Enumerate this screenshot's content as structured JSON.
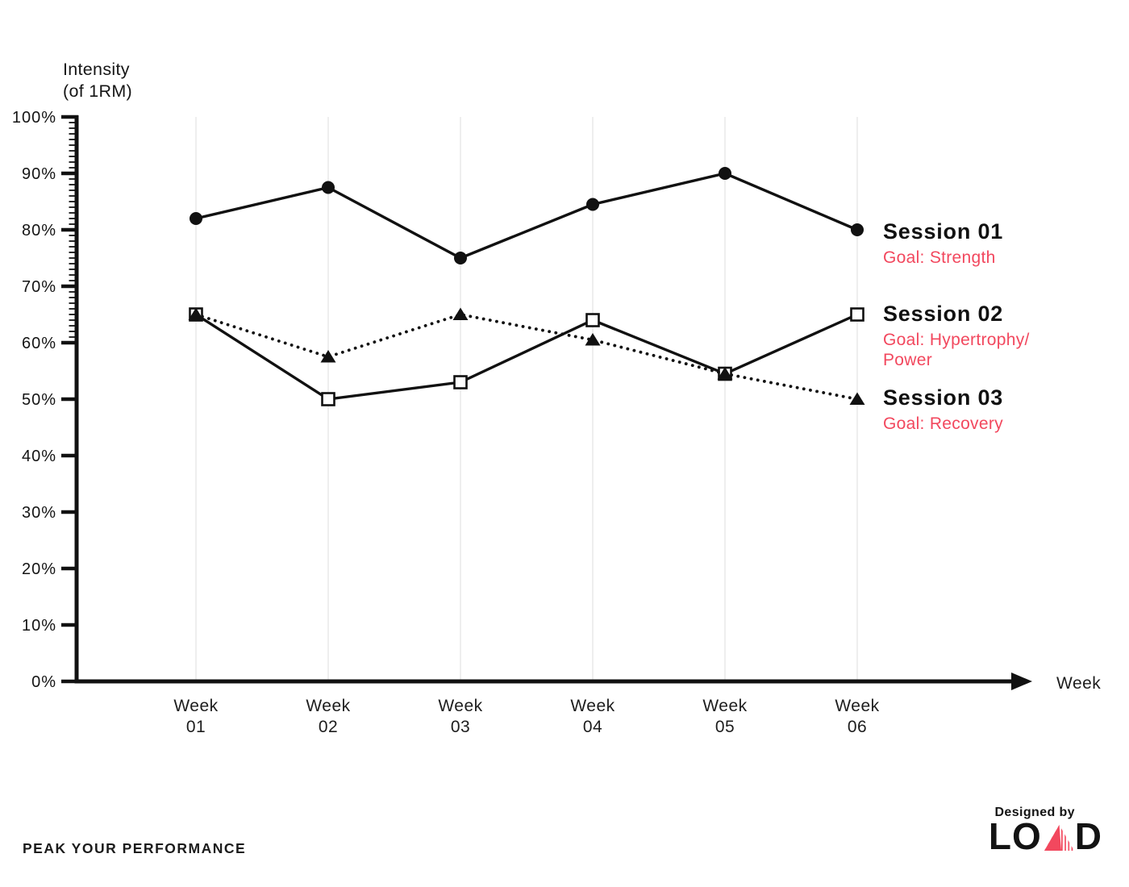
{
  "y_axis": {
    "title_lines": [
      "Intensity",
      "(of 1RM)"
    ],
    "tick_labels": [
      "0%",
      "10%",
      "20%",
      "30%",
      "40%",
      "50%",
      "60%",
      "70%",
      "80%",
      "90%",
      "100%"
    ]
  },
  "x_axis": {
    "title": "Week"
  },
  "chart_data": {
    "type": "line",
    "xlabel": "Week",
    "ylabel": "Intensity (of 1RM)",
    "categories": [
      "Week 01",
      "Week 02",
      "Week 03",
      "Week 04",
      "Week 05",
      "Week 06"
    ],
    "category_label_lines": [
      [
        "Week",
        "01"
      ],
      [
        "Week",
        "02"
      ],
      [
        "Week",
        "03"
      ],
      [
        "Week",
        "04"
      ],
      [
        "Week",
        "05"
      ],
      [
        "Week",
        "06"
      ]
    ],
    "ylim": [
      0,
      100
    ],
    "y_major_tick_step": 10,
    "y_minor_ticks_range": [
      60,
      100
    ],
    "y_minor_tick_step": 1,
    "grid": "vertical-only",
    "legend_position": "right-of-line-endpoints",
    "series": [
      {
        "name": "Session 01",
        "goal_lines": [
          "Goal: Strength"
        ],
        "marker": "filled-circle",
        "line_style": "solid",
        "color": "#111111",
        "values": [
          82,
          87.5,
          75,
          84.5,
          90,
          80
        ]
      },
      {
        "name": "Session 02",
        "goal_lines": [
          "Goal: Hypertrophy/",
          "Power"
        ],
        "marker": "open-square",
        "line_style": "solid",
        "color": "#111111",
        "values": [
          65,
          50,
          53,
          64,
          54.5,
          65
        ]
      },
      {
        "name": "Session 03",
        "goal_lines": [
          "Goal: Recovery"
        ],
        "marker": "filled-triangle",
        "line_style": "dotted",
        "color": "#111111",
        "values": [
          65,
          57.5,
          65,
          60.5,
          54.5,
          50
        ]
      }
    ]
  },
  "footer": {
    "tagline": "PEAK YOUR PERFORMANCE"
  },
  "credit": {
    "label": "Designed by",
    "brand": "LOAD",
    "brand_prefix": "LO",
    "brand_suffix": "D",
    "brand_icon": "pink-triangle"
  },
  "colors": {
    "accent": "#F2485E",
    "ink": "#111111",
    "grid": "#e2e2e2"
  }
}
